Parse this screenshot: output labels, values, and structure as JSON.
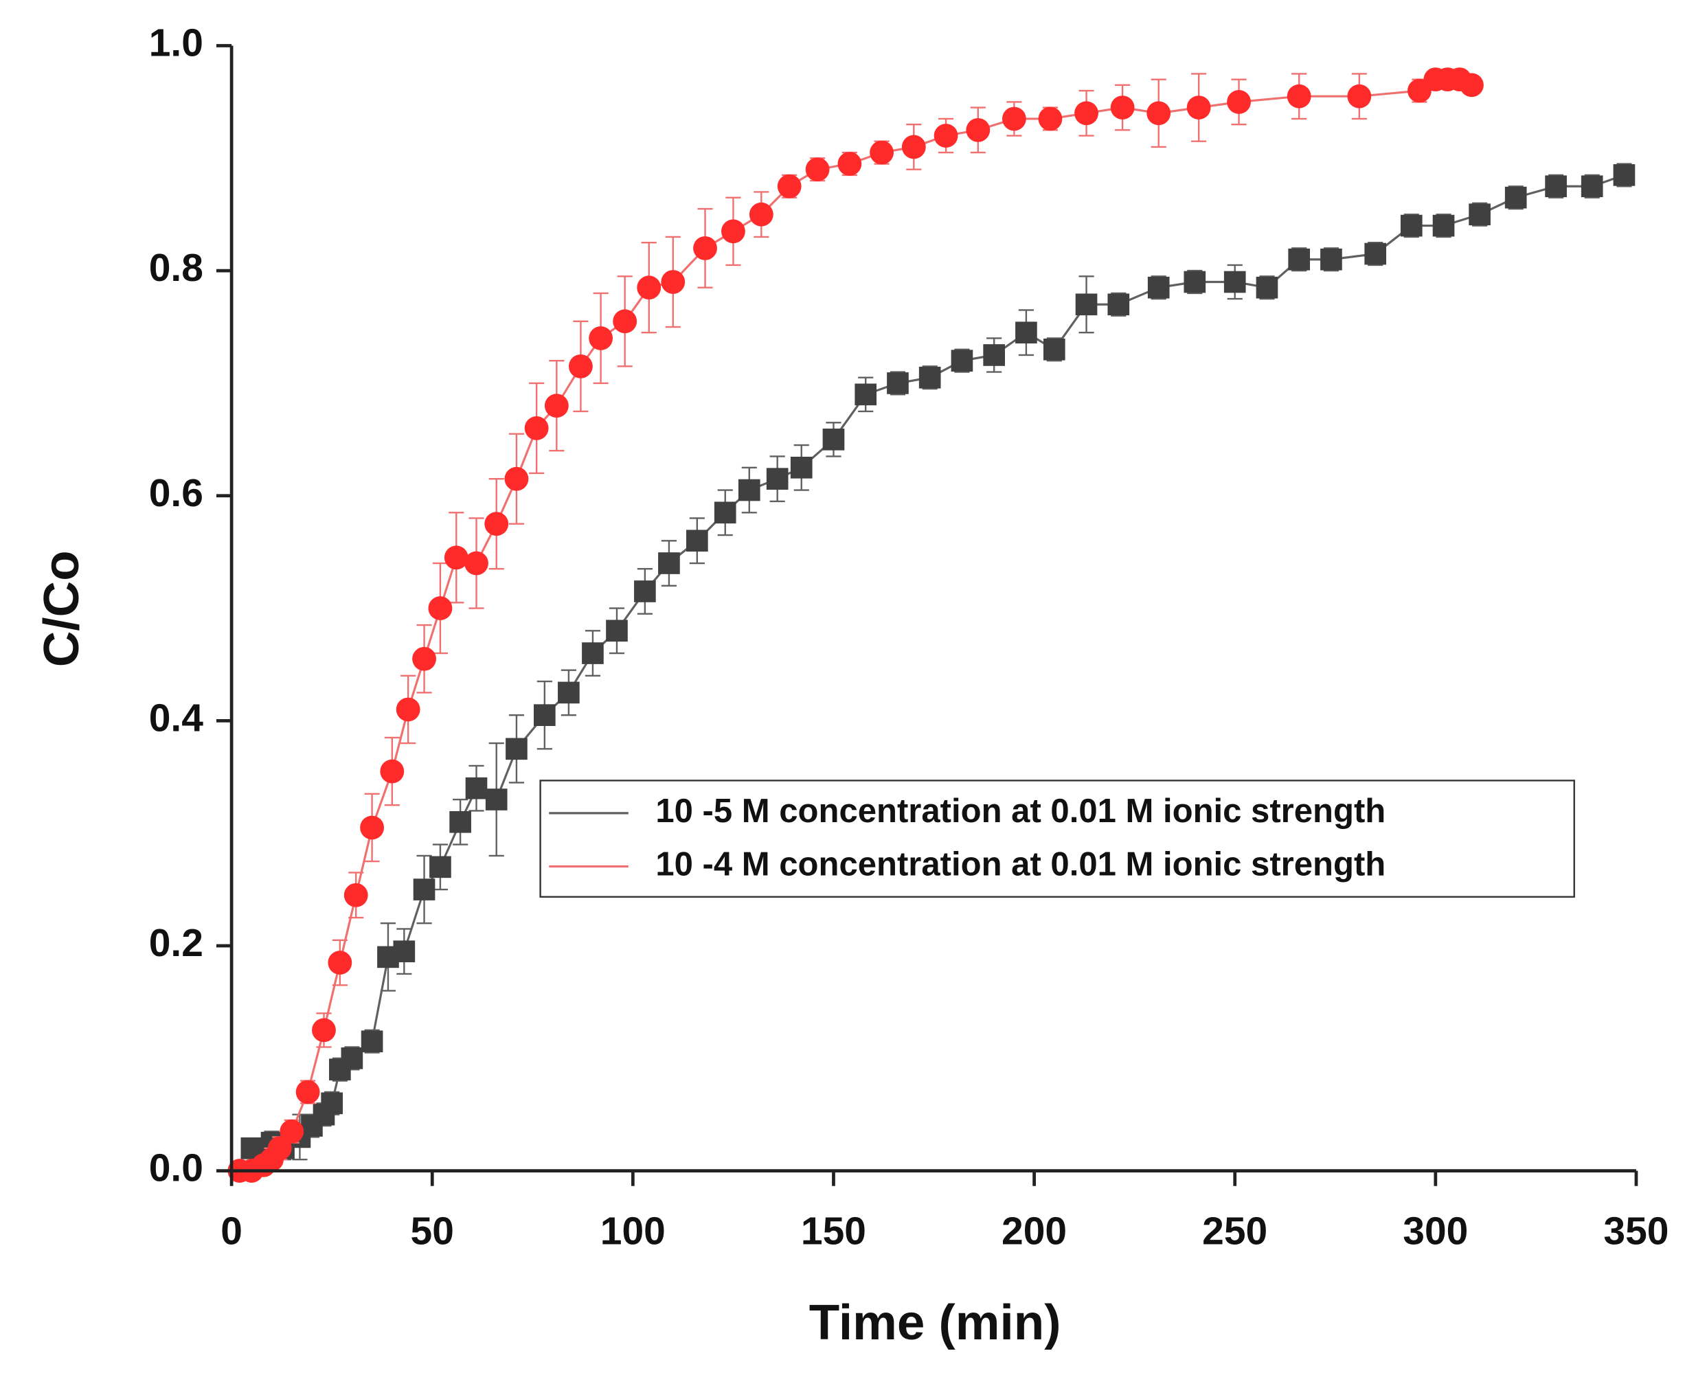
{
  "chart_data": {
    "type": "line",
    "x_label": "Time (min)",
    "y_label": "C/Co",
    "xlim": [
      0,
      350
    ],
    "ylim": [
      0,
      1.0
    ],
    "xticks": [
      0,
      50,
      100,
      150,
      200,
      250,
      300,
      350
    ],
    "yticks": [
      {
        "value": 0,
        "label": "0.0"
      },
      0.2,
      0.4,
      0.6,
      0.8,
      {
        "value": 1.0,
        "label": "1.0"
      }
    ],
    "legend": "center-right",
    "series": [
      {
        "name": "10 -5 M concentration at 0.01 M ionic strength",
        "color": "#404040",
        "line_color": "#606060",
        "marker": "square",
        "x": [
          5,
          8,
          10,
          13,
          17,
          20,
          23,
          25,
          27,
          30,
          35,
          39,
          43,
          48,
          52,
          57,
          61,
          66,
          71,
          78,
          84,
          90,
          96,
          103,
          109,
          116,
          123,
          129,
          136,
          142,
          150,
          158,
          166,
          174,
          182,
          190,
          198,
          205,
          213,
          221,
          231,
          240,
          250,
          258,
          266,
          274,
          285,
          294,
          302,
          311,
          320,
          330,
          339,
          347
        ],
        "values": [
          0.02,
          0.02,
          0.025,
          0.02,
          0.03,
          0.04,
          0.05,
          0.06,
          0.09,
          0.1,
          0.115,
          0.19,
          0.195,
          0.25,
          0.27,
          0.31,
          0.34,
          0.33,
          0.375,
          0.405,
          0.425,
          0.46,
          0.48,
          0.515,
          0.54,
          0.56,
          0.585,
          0.605,
          0.615,
          0.625,
          0.65,
          0.69,
          0.7,
          0.705,
          0.72,
          0.725,
          0.745,
          0.73,
          0.77,
          0.77,
          0.785,
          0.79,
          0.79,
          0.785,
          0.81,
          0.81,
          0.815,
          0.84,
          0.84,
          0.85,
          0.865,
          0.875,
          0.875,
          0.885
        ],
        "errors": [
          0.005,
          0.005,
          0.01,
          0.01,
          0.02,
          0.01,
          0.01,
          0.01,
          0.01,
          0.01,
          0.01,
          0.03,
          0.02,
          0.03,
          0.02,
          0.02,
          0.02,
          0.05,
          0.03,
          0.03,
          0.02,
          0.02,
          0.02,
          0.02,
          0.02,
          0.02,
          0.02,
          0.02,
          0.02,
          0.02,
          0.015,
          0.015,
          0.01,
          0.01,
          0.01,
          0.015,
          0.02,
          0.01,
          0.025,
          0.01,
          0.01,
          0.01,
          0.015,
          0.01,
          0.01,
          0.01,
          0.01,
          0.01,
          0.01,
          0.01,
          0.01,
          0.01,
          0.01,
          0.01
        ]
      },
      {
        "name": "10 -4 M concentration at 0.01 M ionic strength",
        "color": "#ff2a2a",
        "line_color": "#f07070",
        "marker": "circle",
        "x": [
          2,
          5,
          8,
          10,
          12,
          15,
          19,
          23,
          27,
          31,
          35,
          40,
          44,
          48,
          52,
          56,
          61,
          66,
          71,
          76,
          81,
          87,
          92,
          98,
          104,
          110,
          118,
          125,
          132,
          139,
          146,
          154,
          162,
          170,
          178,
          186,
          195,
          204,
          213,
          222,
          231,
          241,
          251,
          266,
          281,
          296,
          300,
          303,
          306,
          309
        ],
        "values": [
          0.0,
          0.0,
          0.005,
          0.01,
          0.02,
          0.035,
          0.07,
          0.125,
          0.185,
          0.245,
          0.305,
          0.355,
          0.41,
          0.455,
          0.5,
          0.545,
          0.54,
          0.575,
          0.615,
          0.66,
          0.68,
          0.715,
          0.74,
          0.755,
          0.785,
          0.79,
          0.82,
          0.835,
          0.85,
          0.875,
          0.89,
          0.895,
          0.905,
          0.91,
          0.92,
          0.925,
          0.935,
          0.935,
          0.94,
          0.945,
          0.94,
          0.945,
          0.95,
          0.955,
          0.955,
          0.96,
          0.97,
          0.97,
          0.97,
          0.965
        ],
        "errors": [
          0.005,
          0.005,
          0.005,
          0.01,
          0.01,
          0.01,
          0.01,
          0.015,
          0.02,
          0.02,
          0.03,
          0.03,
          0.03,
          0.03,
          0.04,
          0.04,
          0.04,
          0.04,
          0.04,
          0.04,
          0.04,
          0.04,
          0.04,
          0.04,
          0.04,
          0.04,
          0.035,
          0.03,
          0.02,
          0.01,
          0.01,
          0.01,
          0.01,
          0.02,
          0.015,
          0.02,
          0.015,
          0.01,
          0.02,
          0.02,
          0.03,
          0.03,
          0.02,
          0.02,
          0.02,
          0.01,
          0.005,
          0.005,
          0.005,
          0.005
        ]
      }
    ]
  }
}
